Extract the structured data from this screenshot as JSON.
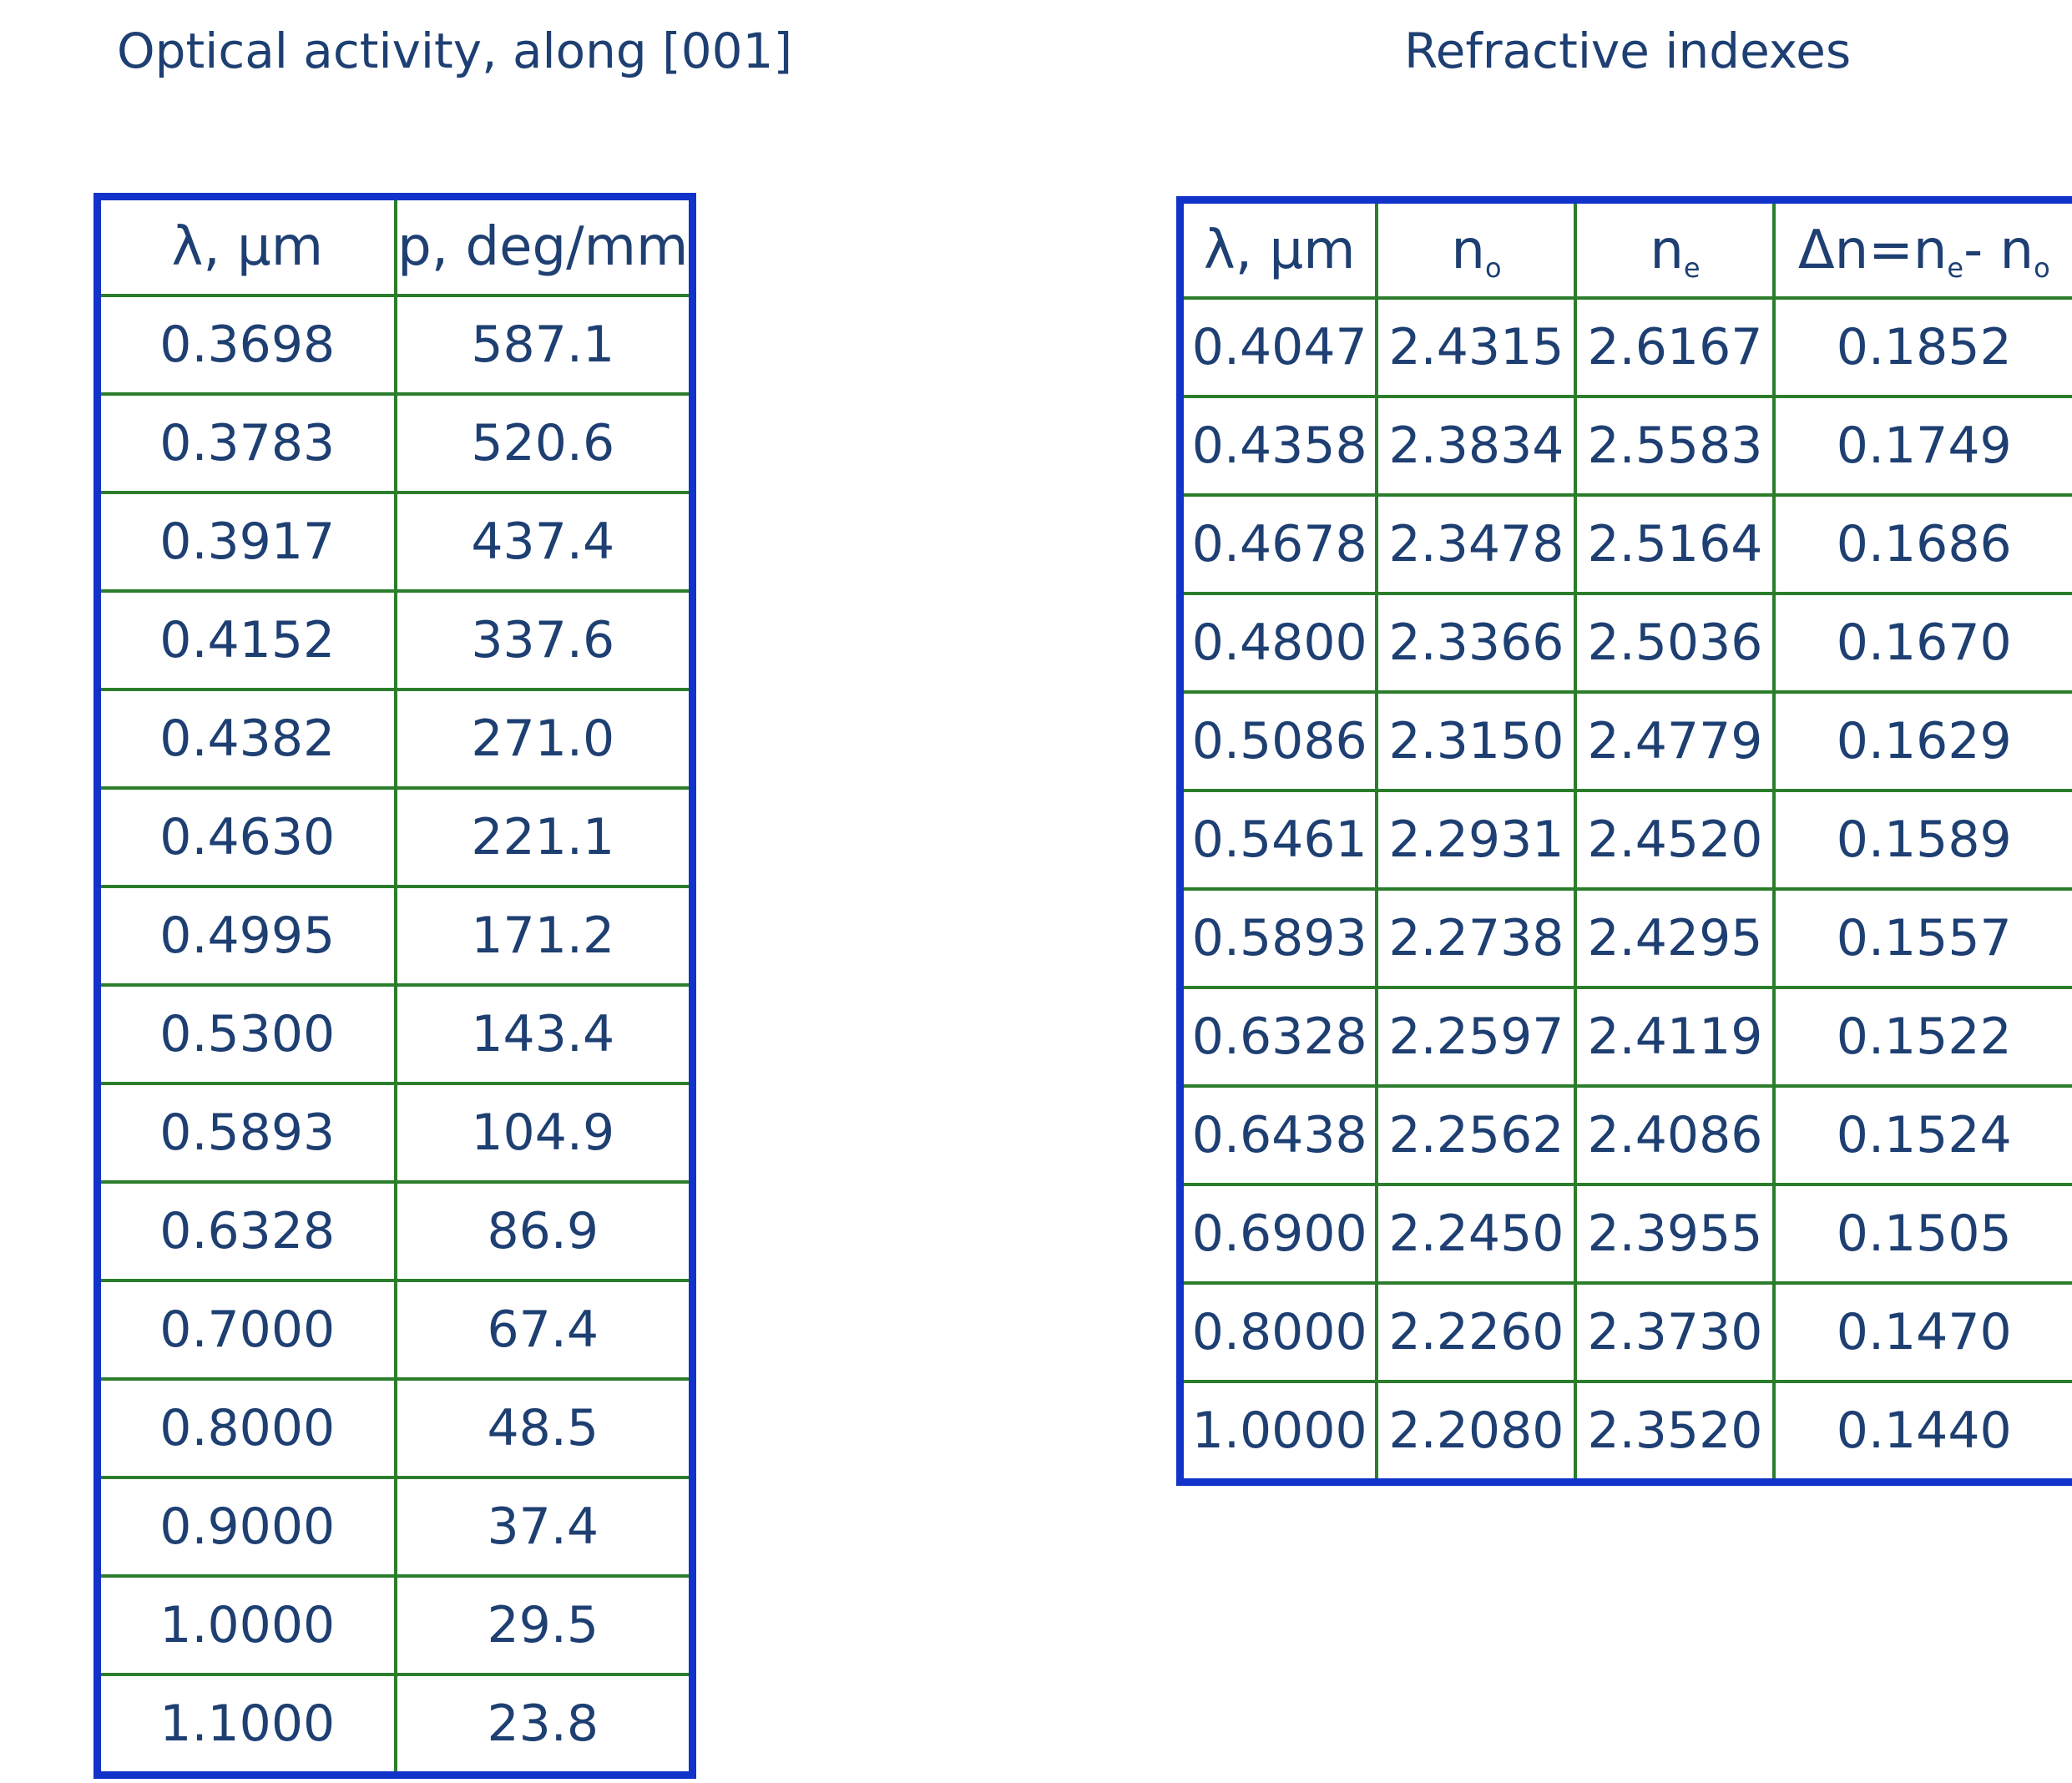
{
  "optical_activity": {
    "title": "Optical activity, along [001]",
    "headers": [
      "λ, μm",
      "p, deg/mm"
    ],
    "rows": [
      [
        "0.3698",
        "587.1"
      ],
      [
        "0.3783",
        "520.6"
      ],
      [
        "0.3917",
        "437.4"
      ],
      [
        "0.4152",
        "337.6"
      ],
      [
        "0.4382",
        "271.0"
      ],
      [
        "0.4630",
        "221.1"
      ],
      [
        "0.4995",
        "171.2"
      ],
      [
        "0.5300",
        "143.4"
      ],
      [
        "0.5893",
        "104.9"
      ],
      [
        "0.6328",
        "86.9"
      ],
      [
        "0.7000",
        "67.4"
      ],
      [
        "0.8000",
        "48.5"
      ],
      [
        "0.9000",
        "37.4"
      ],
      [
        "1.0000",
        "29.5"
      ],
      [
        "1.1000",
        "23.8"
      ]
    ]
  },
  "refractive_indexes": {
    "title": "Refractive indexes",
    "headers": {
      "lambda": "λ, μm",
      "n_o": {
        "base": "n",
        "sub": "o"
      },
      "n_e": {
        "base": "n",
        "sub": "e"
      },
      "delta": {
        "p1": "Δn=n",
        "sub1": "e",
        "p2": "- n",
        "sub2": "o"
      }
    },
    "rows": [
      [
        "0.4047",
        "2.4315",
        "2.6167",
        "0.1852"
      ],
      [
        "0.4358",
        "2.3834",
        "2.5583",
        "0.1749"
      ],
      [
        "0.4678",
        "2.3478",
        "2.5164",
        "0.1686"
      ],
      [
        "0.4800",
        "2.3366",
        "2.5036",
        "0.1670"
      ],
      [
        "0.5086",
        "2.3150",
        "2.4779",
        "0.1629"
      ],
      [
        "0.5461",
        "2.2931",
        "2.4520",
        "0.1589"
      ],
      [
        "0.5893",
        "2.2738",
        "2.4295",
        "0.1557"
      ],
      [
        "0.6328",
        "2.2597",
        "2.4119",
        "0.1522"
      ],
      [
        "0.6438",
        "2.2562",
        "2.4086",
        "0.1524"
      ],
      [
        "0.6900",
        "2.2450",
        "2.3955",
        "0.1505"
      ],
      [
        "0.8000",
        "2.2260",
        "2.3730",
        "0.1470"
      ],
      [
        "1.0000",
        "2.2080",
        "2.3520",
        "0.1440"
      ]
    ]
  },
  "colors": {
    "text": "#1e3f72",
    "outer_border": "#1233c9",
    "inner_grid": "#2b7d2b"
  }
}
